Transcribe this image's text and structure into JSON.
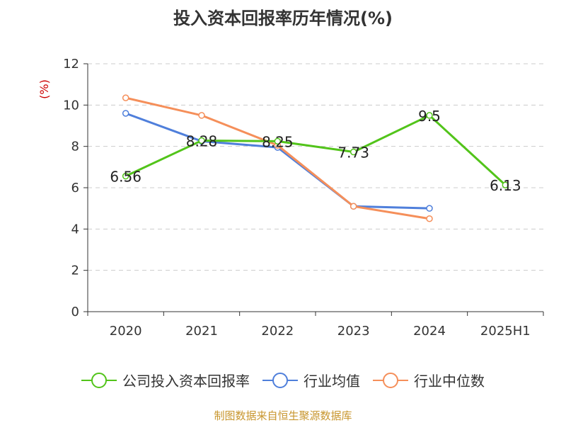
{
  "title": "投入资本回报率历年情况(%)",
  "source_note": "制图数据来自恒生聚源数据库",
  "colors": {
    "grid": "#cccccc",
    "axis": "#333333",
    "ylabel": "#cc0000",
    "source": "#c8962e"
  },
  "chart_data": {
    "type": "line",
    "title": "投入资本回报率历年情况(%)",
    "ylabel": "(%)",
    "xlabel": "",
    "categories": [
      "2020",
      "2021",
      "2022",
      "2023",
      "2024",
      "2025H1"
    ],
    "ylim": [
      0,
      12
    ],
    "yticks": [
      0,
      2,
      4,
      6,
      8,
      10,
      12
    ],
    "grid": true,
    "legend_position": "bottom",
    "series": [
      {
        "name": "公司投入资本回报率",
        "color": "#52c41a",
        "values": [
          6.56,
          8.28,
          8.25,
          7.73,
          9.5,
          6.13
        ],
        "labels": [
          "6.56",
          "8.28",
          "8.25",
          "7.73",
          "9.5",
          "6.13"
        ]
      },
      {
        "name": "行业均值",
        "color": "#4f7fdb",
        "values": [
          9.6,
          8.25,
          7.95,
          5.1,
          5.0,
          null
        ],
        "labels": null
      },
      {
        "name": "行业中位数",
        "color": "#f58f5a",
        "values": [
          10.35,
          9.5,
          8.05,
          5.1,
          4.5,
          null
        ],
        "labels": null
      }
    ]
  }
}
